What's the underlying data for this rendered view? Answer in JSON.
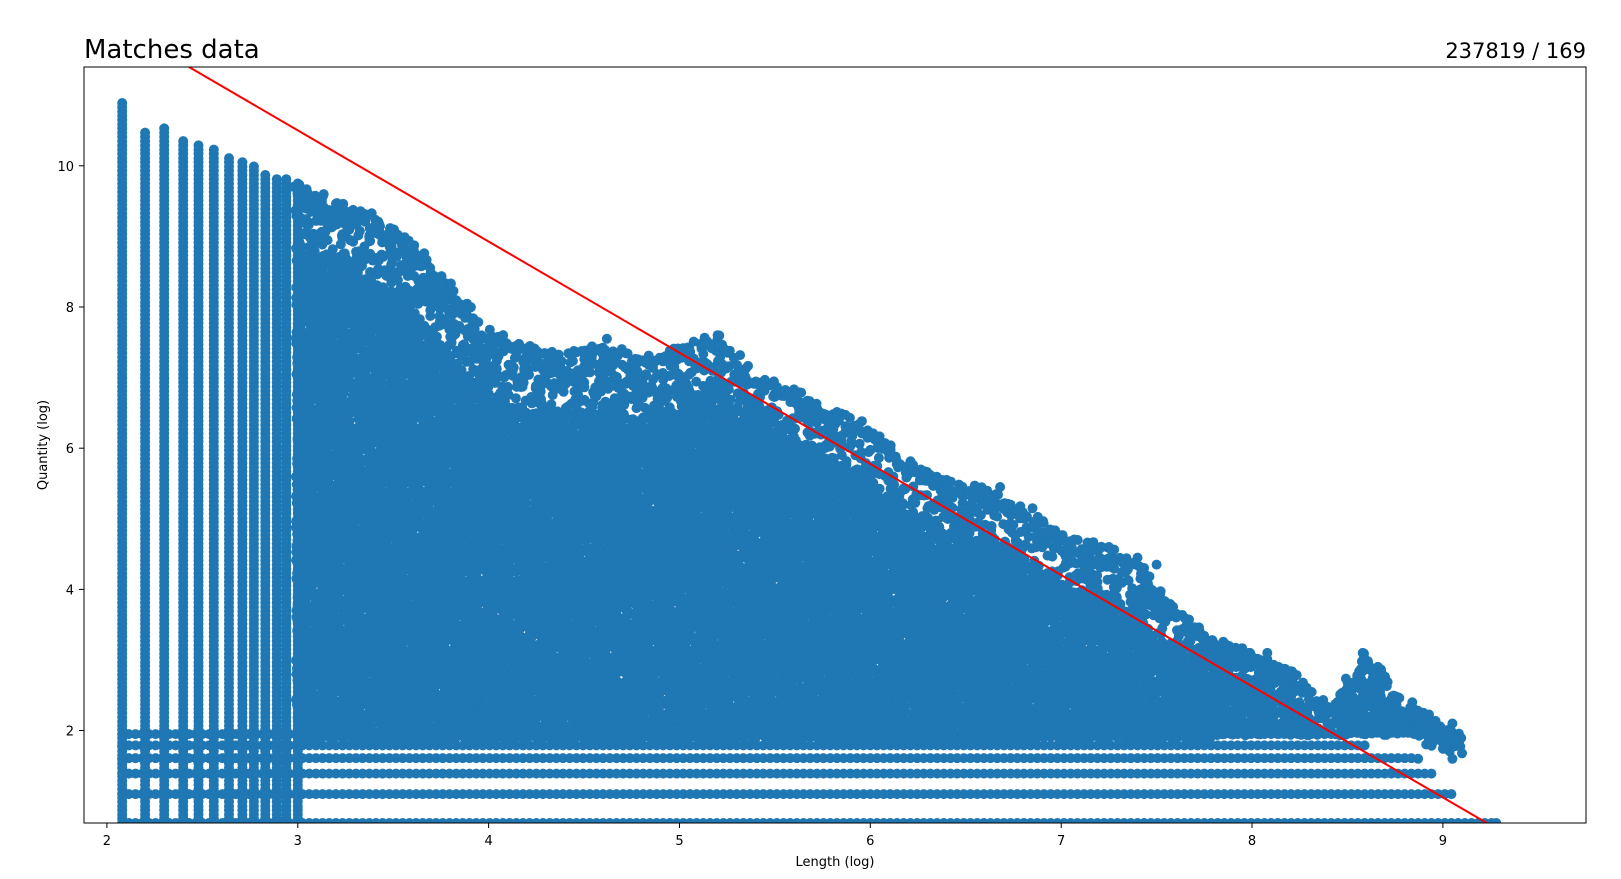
{
  "chart_data": {
    "type": "scatter",
    "title": "Matches data",
    "subtitle": "237819 / 169",
    "xlabel": "Length (log)",
    "ylabel": "Quantity (log)",
    "xlim": [
      1.88,
      9.75
    ],
    "ylim": [
      0.69,
      11.4
    ],
    "x_ticks": [
      "2",
      "3",
      "4",
      "5",
      "6",
      "7",
      "8",
      "9"
    ],
    "y_ticks": [
      "2",
      "4",
      "6",
      "8",
      "10"
    ],
    "grid": false,
    "colors": {
      "points": "#1f77b4",
      "fit_line": "#ff0000"
    },
    "fit_line": {
      "x": [
        2.43,
        9.23
      ],
      "y": [
        11.4,
        0.69
      ]
    },
    "upper_envelope": {
      "x": [
        2.08,
        2.2,
        2.3,
        2.4,
        2.5,
        2.6,
        2.7,
        2.8,
        2.9,
        3.0,
        3.2,
        3.4,
        3.6,
        3.8,
        4.0,
        4.2,
        4.4,
        4.6,
        4.8,
        5.0,
        5.2,
        5.4,
        5.6,
        5.8,
        6.0,
        6.2,
        6.4,
        6.6,
        6.8,
        7.0,
        7.2,
        7.4,
        7.6,
        7.8,
        8.0,
        8.2,
        8.4,
        8.6,
        8.8,
        9.0,
        9.1
      ],
      "y": [
        10.9,
        10.5,
        10.55,
        10.4,
        10.3,
        10.2,
        10.1,
        9.95,
        9.85,
        9.75,
        9.5,
        9.3,
        8.95,
        8.3,
        7.7,
        7.45,
        7.35,
        7.5,
        7.3,
        7.45,
        7.6,
        7.05,
        6.85,
        6.6,
        6.3,
        5.8,
        5.55,
        5.45,
        5.15,
        4.8,
        4.65,
        4.4,
        3.7,
        3.3,
        3.1,
        2.9,
        2.3,
        3.1,
        2.4,
        2.1,
        2.05
      ]
    },
    "lower_rows_y": [
      0.69,
      1.1,
      1.39,
      1.61,
      1.79,
      1.95
    ],
    "lower_rows_xmax": [
      9.28,
      9.05,
      8.95,
      8.85,
      8.6,
      8.45
    ],
    "discrete_columns_x": [
      2.08,
      2.2,
      2.3,
      2.4,
      2.48,
      2.56,
      2.64,
      2.71,
      2.77,
      2.83,
      2.89,
      2.94,
      3.0
    ],
    "outliers": [
      {
        "x": 5.2,
        "y": 7.6
      },
      {
        "x": 5.05,
        "y": 7.4
      },
      {
        "x": 4.62,
        "y": 7.55
      },
      {
        "x": 6.4,
        "y": 5.55
      },
      {
        "x": 6.68,
        "y": 5.45
      },
      {
        "x": 6.85,
        "y": 5.15
      },
      {
        "x": 7.25,
        "y": 4.6
      },
      {
        "x": 7.4,
        "y": 4.45
      },
      {
        "x": 7.5,
        "y": 4.35
      },
      {
        "x": 8.08,
        "y": 3.1
      },
      {
        "x": 8.14,
        "y": 2.9
      },
      {
        "x": 8.58,
        "y": 3.1
      },
      {
        "x": 8.17,
        "y": 2.6
      },
      {
        "x": 8.22,
        "y": 2.55
      },
      {
        "x": 8.45,
        "y": 2.3
      },
      {
        "x": 8.52,
        "y": 2.1
      },
      {
        "x": 8.58,
        "y": 2.1
      },
      {
        "x": 8.84,
        "y": 2.4
      },
      {
        "x": 8.92,
        "y": 2.2
      },
      {
        "x": 8.85,
        "y": 1.95
      },
      {
        "x": 8.92,
        "y": 1.95
      },
      {
        "x": 9.02,
        "y": 1.8
      },
      {
        "x": 9.05,
        "y": 2.1
      },
      {
        "x": 9.07,
        "y": 1.8
      },
      {
        "x": 9.05,
        "y": 1.6
      },
      {
        "x": 8.87,
        "y": 1.6
      },
      {
        "x": 8.73,
        "y": 1.4
      },
      {
        "x": 9.28,
        "y": 0.69
      }
    ]
  }
}
